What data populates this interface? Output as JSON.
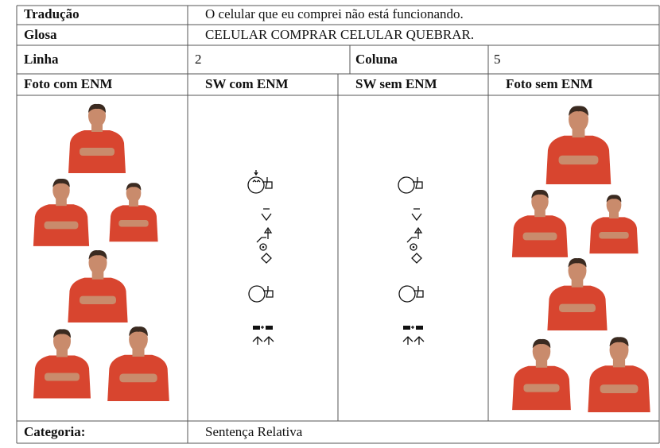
{
  "rows": [
    {
      "label": "Tradução",
      "value": "O celular que eu comprei não está funcionando."
    },
    {
      "label": "Glosa",
      "value": "CELULAR COMPRAR CELULAR QUEBRAR."
    }
  ],
  "position": {
    "line_label": "Linha",
    "line": 2,
    "column_label": "Coluna",
    "column": 5
  },
  "headers": [
    "Foto com ENM",
    "SW com ENM",
    "SW sem ENM",
    "Foto sem ENM"
  ],
  "footer": {
    "label": "Categoria:",
    "value": "Sentença Relativa"
  }
}
